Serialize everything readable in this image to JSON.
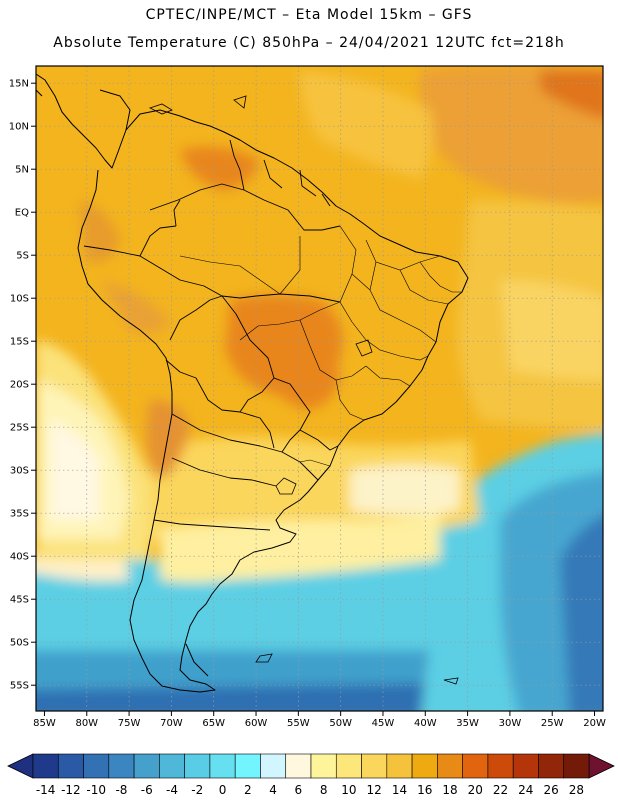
{
  "header": {
    "line1": "CPTEC/INPE/MCT –  Eta Model 15km – GFS",
    "line2": "Absolute Temperature (C) 850hPa – 24/04/2021 12UTC fct=218h"
  },
  "map": {
    "lon_range": [
      -86,
      -19
    ],
    "lat_range": [
      -58,
      17
    ],
    "x_ticks": [
      {
        "lon": -85,
        "label": "85W"
      },
      {
        "lon": -80,
        "label": "80W"
      },
      {
        "lon": -75,
        "label": "75W"
      },
      {
        "lon": -70,
        "label": "70W"
      },
      {
        "lon": -65,
        "label": "65W"
      },
      {
        "lon": -60,
        "label": "60W"
      },
      {
        "lon": -55,
        "label": "55W"
      },
      {
        "lon": -50,
        "label": "50W"
      },
      {
        "lon": -45,
        "label": "45W"
      },
      {
        "lon": -40,
        "label": "40W"
      },
      {
        "lon": -35,
        "label": "35W"
      },
      {
        "lon": -30,
        "label": "30W"
      },
      {
        "lon": -25,
        "label": "25W"
      },
      {
        "lon": -20,
        "label": "20W"
      }
    ],
    "y_ticks": [
      {
        "lat": 15,
        "label": "15N"
      },
      {
        "lat": 10,
        "label": "10N"
      },
      {
        "lat": 5,
        "label": "5N"
      },
      {
        "lat": 0,
        "label": "EQ"
      },
      {
        "lat": -5,
        "label": "5S"
      },
      {
        "lat": -10,
        "label": "10S"
      },
      {
        "lat": -15,
        "label": "15S"
      },
      {
        "lat": -20,
        "label": "20S"
      },
      {
        "lat": -25,
        "label": "25S"
      },
      {
        "lat": -30,
        "label": "30S"
      },
      {
        "lat": -35,
        "label": "35S"
      },
      {
        "lat": -40,
        "label": "40S"
      },
      {
        "lat": -45,
        "label": "45S"
      },
      {
        "lat": -50,
        "label": "50S"
      },
      {
        "lat": -55,
        "label": "55S"
      }
    ]
  },
  "colorbar": {
    "colors": [
      "#1f3a8a",
      "#2a5aa6",
      "#3271b4",
      "#3b86c0",
      "#46a0cc",
      "#4fb8d8",
      "#5acde6",
      "#66e0f0",
      "#72f5ff",
      "#d2f6ff",
      "#fff8de",
      "#fef59a",
      "#fde77a",
      "#fbd65c",
      "#f5c23b",
      "#eeaa10",
      "#e88a16",
      "#e0650e",
      "#cc4a0a",
      "#b5350a",
      "#922608",
      "#731a08"
    ],
    "labels": [
      "-14",
      "-12",
      "-10",
      "-8",
      "-6",
      "-4",
      "-2",
      "0",
      "2",
      "4",
      "6",
      "8",
      "10",
      "12",
      "14",
      "16",
      "18",
      "20",
      "22",
      "24",
      "26",
      "28"
    ],
    "under_color": "#203080",
    "over_color": "#6e1230"
  }
}
